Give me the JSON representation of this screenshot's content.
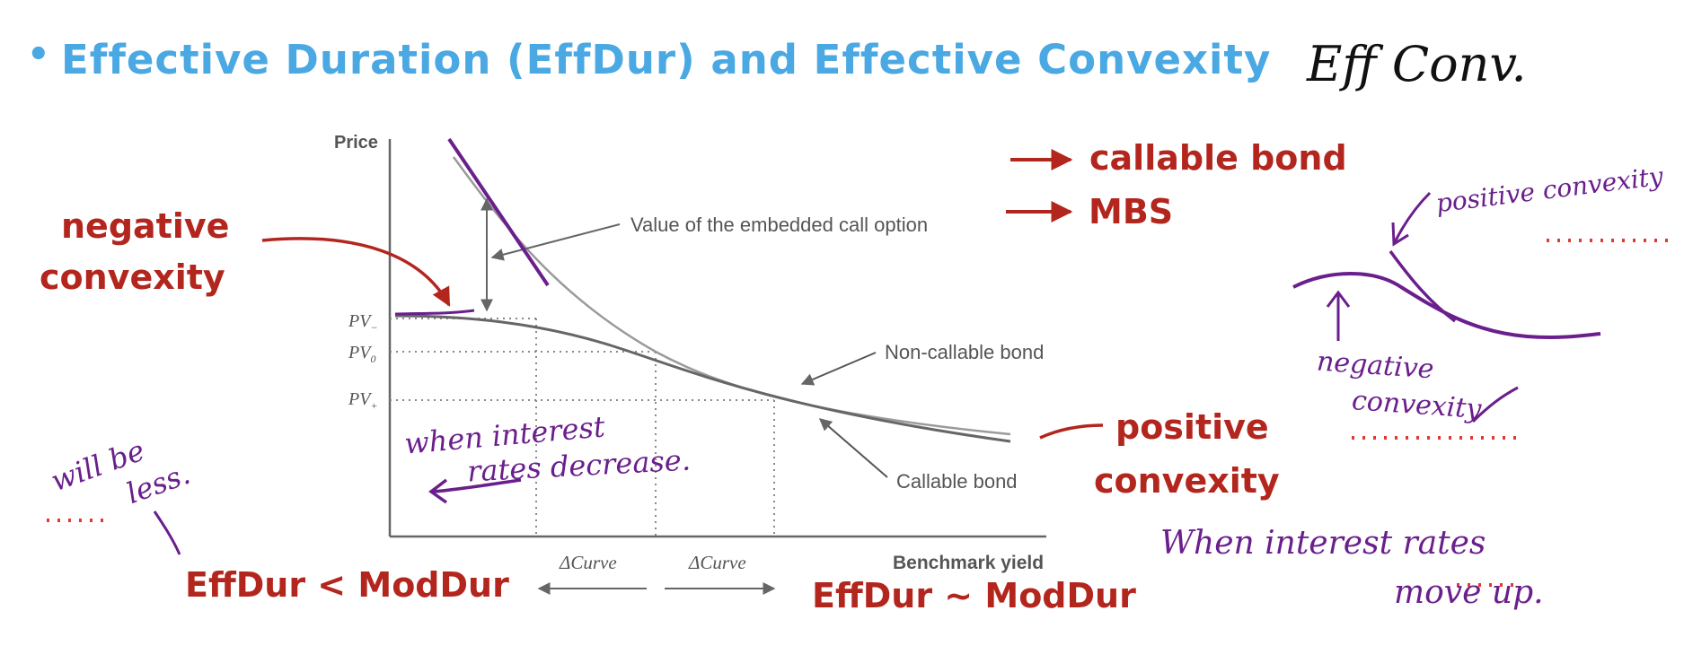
{
  "title": {
    "bullet": "•",
    "text": "Effective Duration  (EffDur) and Effective Convexity",
    "handwritten_abbrev": "Eff Conv."
  },
  "chart": {
    "y_axis_label": "Price",
    "x_axis_label": "Benchmark yield",
    "pv_minus": "PV",
    "pv_minus_sub": "−",
    "pv_zero": "PV",
    "pv_zero_sub": "0",
    "pv_plus": "PV",
    "pv_plus_sub": "+",
    "call_option_label": "Value of the embedded call option",
    "noncallable_label": "Non-callable bond",
    "callable_label": "Callable bond",
    "delta_curve_left": "ΔCurve",
    "delta_curve_right": "ΔCurve"
  },
  "annotations": {
    "negative_convexity_line1": "negative",
    "negative_convexity_line2": "convexity",
    "positive_convexity_line1": "positive",
    "positive_convexity_line2": "convexity",
    "callable_bond": "callable bond",
    "mbs": "MBS",
    "effdur_less": "EffDur < ModDur",
    "effdur_similar": "EffDur ~ ModDur",
    "when_rates_decrease_line1": "when interest",
    "when_rates_decrease_line2": "rates decrease.",
    "will_be_less_line1": "will be",
    "will_be_less_line2": "less.",
    "when_rates_up_line1": "When   interest   rates",
    "when_rates_up_line2": "move   up.",
    "side_positive_convexity": "positive convexity",
    "side_negative_convexity_line1": "negative",
    "side_negative_convexity_line2": "convexity"
  },
  "colors": {
    "title_blue": "#4aa8e3",
    "annotation_red": "#b3261e",
    "handwriting_purple": "#6a1f8c",
    "chart_gray": "#666666",
    "dotted_red": "#e03a2f"
  }
}
